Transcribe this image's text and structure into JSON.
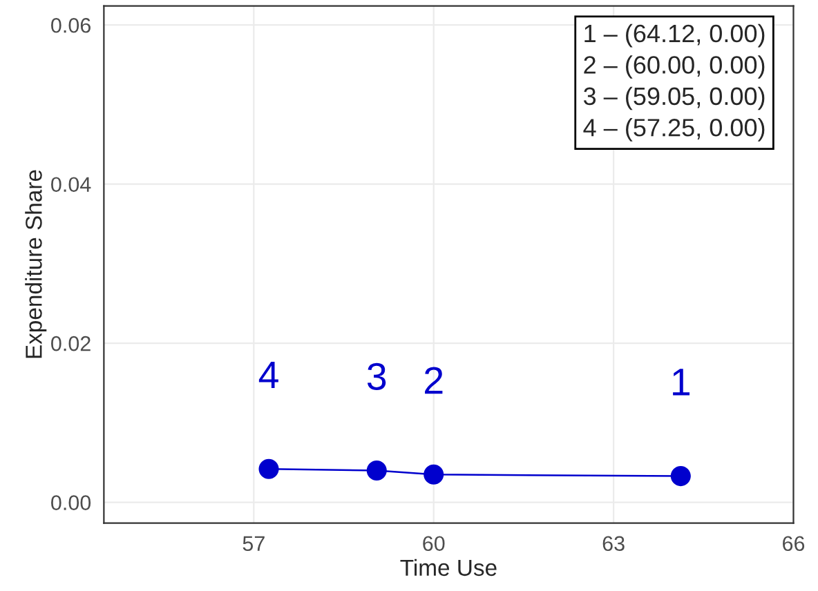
{
  "chart_data": {
    "type": "line",
    "xlabel": "Time Use",
    "ylabel": "Expenditure Share",
    "x": [
      64.12,
      60.0,
      59.05,
      57.25
    ],
    "series": [
      {
        "color": "#0000cd",
        "values": [
          0.0033,
          0.0035,
          0.004,
          0.0042
        ]
      }
    ],
    "marker": "circle",
    "line_style": "solid",
    "xlim": [
      54.5,
      66
    ],
    "xticks": [
      57,
      60,
      63,
      66
    ],
    "ylim": [
      -0.0026,
      0.0624
    ],
    "yticks": [
      {
        "value": 0,
        "label": "0.00"
      },
      0.02,
      0.04,
      0.06
    ],
    "grid": true,
    "annotations": [
      {
        "text": "1",
        "x": 64.12,
        "y": 0.0033
      },
      {
        "text": "2",
        "x": 60.0,
        "y": 0.0035
      },
      {
        "text": "3",
        "x": 59.05,
        "y": 0.004
      },
      {
        "text": "4",
        "x": 57.25,
        "y": 0.0042
      },
      "1 – (64.12, 0.00)",
      "2 – (60.00, 0.00)",
      "3 – (59.05, 0.00)",
      "4 – (57.25, 0.00)"
    ]
  }
}
